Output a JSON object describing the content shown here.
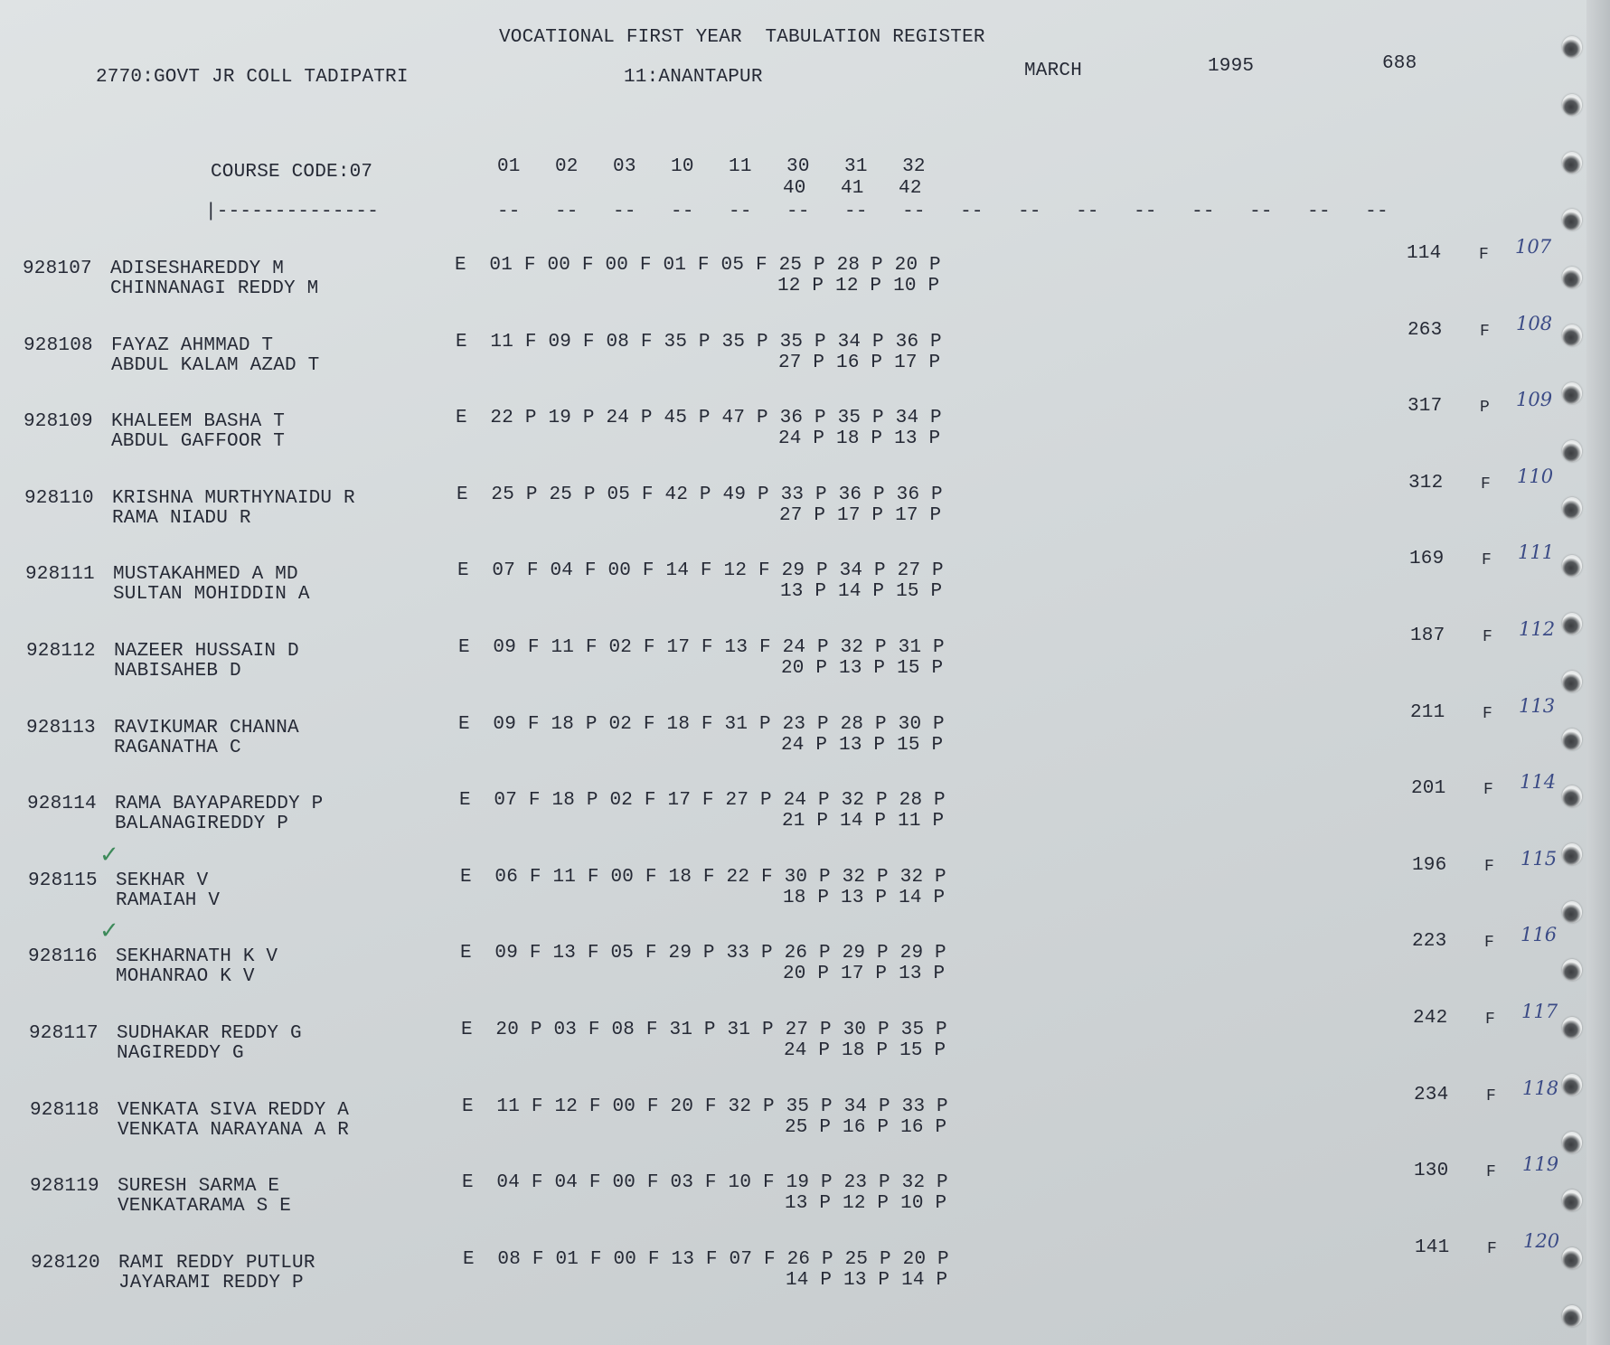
{
  "header": {
    "title": "VOCATIONAL FIRST YEAR  TABULATION REGISTER",
    "college": "2770:GOVT JR COLL TADIPATRI",
    "district": "11:ANANTAPUR",
    "month": "MARCH",
    "year": "1995",
    "page_number": "688",
    "course_code": "COURSE CODE:07",
    "subject_codes_line1": "01   02   03   10   11   30   31   32",
    "subject_codes_line2": "40   41   42",
    "underline_left": "|--------------",
    "underline_right": "--   --   --   --   --   --   --   --   --   --   --   --   --   --   --   --"
  },
  "colors": {
    "ink": "#262a36",
    "handwriting": "#3b4b86",
    "check_mark": "#3d8a5a"
  },
  "students": [
    {
      "roll": "928107",
      "name": "ADISESHAREDDY M",
      "parent": "CHINNANAGI REDDY M",
      "exam": "E",
      "marks": [
        "01 F",
        "00 F",
        "00 F",
        "01 F",
        "05 F",
        "25 P",
        "28 P",
        "20 P"
      ],
      "marks2": [
        "12 P",
        "12 P",
        "10 P"
      ],
      "total": "114",
      "result": "F",
      "serial": "107",
      "checked": false
    },
    {
      "roll": "928108",
      "name": "FAYAZ AHMMAD T",
      "parent": "ABDUL KALAM AZAD T",
      "exam": "E",
      "marks": [
        "11 F",
        "09 F",
        "08 F",
        "35 P",
        "35 P",
        "35 P",
        "34 P",
        "36 P"
      ],
      "marks2": [
        "27 P",
        "16 P",
        "17 P"
      ],
      "total": "263",
      "result": "F",
      "serial": "108",
      "checked": false
    },
    {
      "roll": "928109",
      "name": "KHALEEM BASHA T",
      "parent": "ABDUL GAFFOOR T",
      "exam": "E",
      "marks": [
        "22 P",
        "19 P",
        "24 P",
        "45 P",
        "47 P",
        "36 P",
        "35 P",
        "34 P"
      ],
      "marks2": [
        "24 P",
        "18 P",
        "13 P"
      ],
      "total": "317",
      "result": "P",
      "serial": "109",
      "checked": false
    },
    {
      "roll": "928110",
      "name": "KRISHNA MURTHYNAIDU R",
      "parent": "RAMA NIADU R",
      "exam": "E",
      "marks": [
        "25 P",
        "25 P",
        "05 F",
        "42 P",
        "49 P",
        "33 P",
        "36 P",
        "36 P"
      ],
      "marks2": [
        "27 P",
        "17 P",
        "17 P"
      ],
      "total": "312",
      "result": "F",
      "serial": "110",
      "checked": false
    },
    {
      "roll": "928111",
      "name": "MUSTAKAHMED A MD",
      "parent": "SULTAN MOHIDDIN A",
      "exam": "E",
      "marks": [
        "07 F",
        "04 F",
        "00 F",
        "14 F",
        "12 F",
        "29 P",
        "34 P",
        "27 P"
      ],
      "marks2": [
        "13 P",
        "14 P",
        "15 P"
      ],
      "total": "169",
      "result": "F",
      "serial": "111",
      "checked": false
    },
    {
      "roll": "928112",
      "name": "NAZEER HUSSAIN D",
      "parent": "NABISAHEB D",
      "exam": "E",
      "marks": [
        "09 F",
        "11 F",
        "02 F",
        "17 F",
        "13 F",
        "24 P",
        "32 P",
        "31 P"
      ],
      "marks2": [
        "20 P",
        "13 P",
        "15 P"
      ],
      "total": "187",
      "result": "F",
      "serial": "112",
      "checked": false
    },
    {
      "roll": "928113",
      "name": "RAVIKUMAR CHANNA",
      "parent": "RAGANATHA C",
      "exam": "E",
      "marks": [
        "09 F",
        "18 P",
        "02 F",
        "18 F",
        "31 P",
        "23 P",
        "28 P",
        "30 P"
      ],
      "marks2": [
        "24 P",
        "13 P",
        "15 P"
      ],
      "total": "211",
      "result": "F",
      "serial": "113",
      "checked": false
    },
    {
      "roll": "928114",
      "name": "RAMA BAYAPAREDDY P",
      "parent": "BALANAGIREDDY P",
      "exam": "E",
      "marks": [
        "07 F",
        "18 P",
        "02 F",
        "17 F",
        "27 P",
        "24 P",
        "32 P",
        "28 P"
      ],
      "marks2": [
        "21 P",
        "14 P",
        "11 P"
      ],
      "total": "201",
      "result": "F",
      "serial": "114",
      "checked": false
    },
    {
      "roll": "928115",
      "name": "SEKHAR V",
      "parent": "RAMAIAH V",
      "exam": "E",
      "marks": [
        "06 F",
        "11 F",
        "00 F",
        "18 F",
        "22 F",
        "30 P",
        "32 P",
        "32 P"
      ],
      "marks2": [
        "18 P",
        "13 P",
        "14 P"
      ],
      "total": "196",
      "result": "F",
      "serial": "115",
      "checked": true
    },
    {
      "roll": "928116",
      "name": "SEKHARNATH K V",
      "parent": "MOHANRAO K V",
      "exam": "E",
      "marks": [
        "09 F",
        "13 F",
        "05 F",
        "29 P",
        "33 P",
        "26 P",
        "29 P",
        "29 P"
      ],
      "marks2": [
        "20 P",
        "17 P",
        "13 P"
      ],
      "total": "223",
      "result": "F",
      "serial": "116",
      "checked": true
    },
    {
      "roll": "928117",
      "name": "SUDHAKAR REDDY G",
      "parent": "NAGIREDDY G",
      "exam": "E",
      "marks": [
        "20 P",
        "03 F",
        "08 F",
        "31 P",
        "31 P",
        "27 P",
        "30 P",
        "35 P"
      ],
      "marks2": [
        "24 P",
        "18 P",
        "15 P"
      ],
      "total": "242",
      "result": "F",
      "serial": "117",
      "checked": false
    },
    {
      "roll": "928118",
      "name": "VENKATA SIVA REDDY A",
      "parent": "VENKATA NARAYANA A R",
      "exam": "E",
      "marks": [
        "11 F",
        "12 F",
        "00 F",
        "20 F",
        "32 P",
        "35 P",
        "34 P",
        "33 P"
      ],
      "marks2": [
        "25 P",
        "16 P",
        "16 P"
      ],
      "total": "234",
      "result": "F",
      "serial": "118",
      "checked": false
    },
    {
      "roll": "928119",
      "name": "SURESH SARMA E",
      "parent": "VENKATARAMA S E",
      "exam": "E",
      "marks": [
        "04 F",
        "04 F",
        "00 F",
        "03 F",
        "10 F",
        "19 P",
        "23 P",
        "32 P"
      ],
      "marks2": [
        "13 P",
        "12 P",
        "10 P"
      ],
      "total": "130",
      "result": "F",
      "serial": "119",
      "checked": false
    },
    {
      "roll": "928120",
      "name": "RAMI REDDY PUTLUR",
      "parent": "JAYARAMI REDDY P",
      "exam": "E",
      "marks": [
        "08 F",
        "01 F",
        "00 F",
        "13 F",
        "07 F",
        "26 P",
        "25 P",
        "20 P"
      ],
      "marks2": [
        "14 P",
        "13 P",
        "14 P"
      ],
      "total": "141",
      "result": "F",
      "serial": "120",
      "checked": false
    }
  ]
}
